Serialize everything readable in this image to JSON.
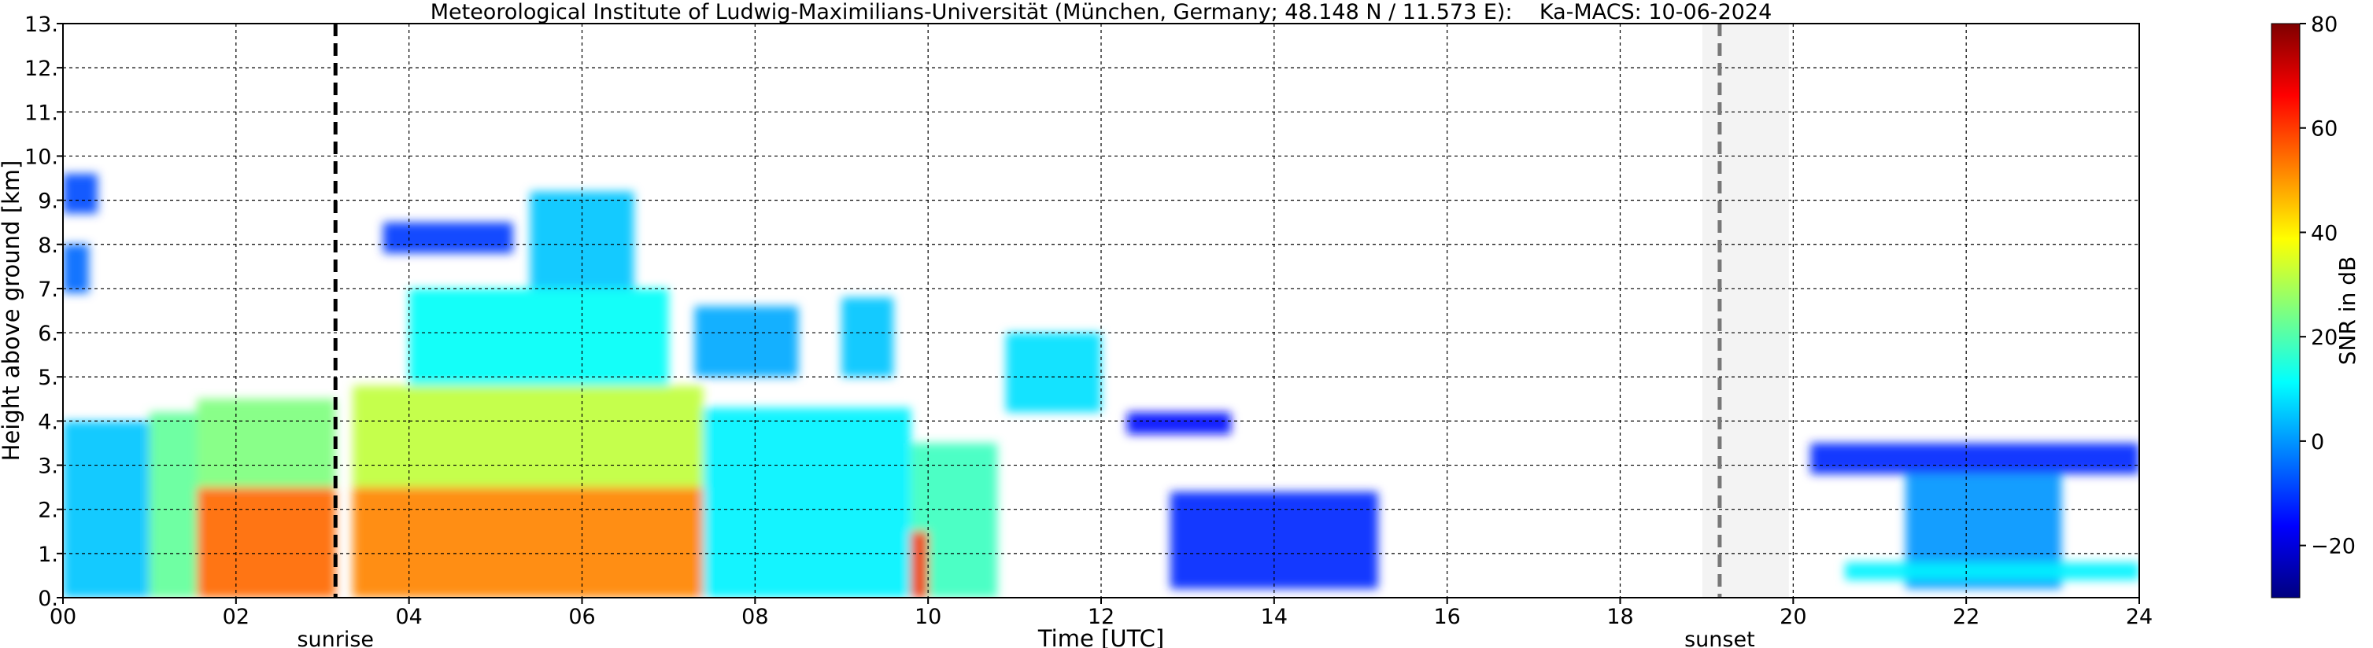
{
  "chart_data": {
    "type": "heatmap",
    "title": "Meteorological Institute of Ludwig-Maximilians-Universität (München, Germany; 48.148 N / 11.573 E):    Ka-MACS: 10-06-2024",
    "xlabel": "Time [UTC]",
    "ylabel": "Height above ground [km]",
    "xlim": [
      0,
      24
    ],
    "ylim": [
      0,
      13
    ],
    "grid": true,
    "x_ticks": [
      0,
      2,
      4,
      6,
      8,
      10,
      12,
      14,
      16,
      18,
      20,
      22,
      24
    ],
    "x_tick_labels": [
      "00",
      "02",
      "04",
      "06",
      "08",
      "10",
      "12",
      "14",
      "16",
      "18",
      "20",
      "22",
      "24"
    ],
    "y_ticks": [
      0,
      1,
      2,
      3,
      4,
      5,
      6,
      7,
      8,
      9,
      10,
      11,
      12,
      13
    ],
    "y_tick_labels": [
      "0.",
      "1.",
      "2.",
      "3.",
      "4.",
      "5.",
      "6.",
      "7.",
      "8.",
      "9.",
      "10.",
      "11.",
      "12.",
      "13."
    ],
    "colorbar": {
      "label": "SNR in dB",
      "range": [
        -30,
        80
      ],
      "ticks": [
        -20,
        0,
        20,
        40,
        60,
        80
      ],
      "tick_labels": [
        "−20",
        "0",
        "20",
        "40",
        "60",
        "80"
      ],
      "colormap": [
        "#00007f",
        "#0000ff",
        "#007fff",
        "#00ffff",
        "#7fff7f",
        "#ffff00",
        "#ff7f00",
        "#ff0000",
        "#7f0000"
      ]
    },
    "events": [
      {
        "label": "sunrise",
        "time": 3.15,
        "line_color": "#000000"
      },
      {
        "label": "sunset",
        "time": 19.15,
        "line_color": "#777777"
      }
    ],
    "no_data_periods": [
      [
        18.95,
        19.95
      ]
    ],
    "echo_regions": [
      {
        "t0": 0.0,
        "t1": 1.0,
        "h0": 0.0,
        "h1": 4.0,
        "snr": 5
      },
      {
        "t0": 1.0,
        "t1": 1.55,
        "h0": 0.0,
        "h1": 4.2,
        "snr": 22
      },
      {
        "t0": 1.55,
        "t1": 3.15,
        "h0": 0.0,
        "h1": 2.5,
        "snr": 55
      },
      {
        "t0": 1.55,
        "t1": 3.15,
        "h0": 2.5,
        "h1": 4.5,
        "snr": 25
      },
      {
        "t0": 3.35,
        "t1": 7.4,
        "h0": 0.0,
        "h1": 2.5,
        "snr": 52
      },
      {
        "t0": 3.35,
        "t1": 7.4,
        "h0": 2.5,
        "h1": 4.8,
        "snr": 32
      },
      {
        "t0": 4.0,
        "t1": 7.0,
        "h0": 4.8,
        "h1": 7.0,
        "snr": 12
      },
      {
        "t0": 5.4,
        "t1": 6.6,
        "h0": 7.0,
        "h1": 9.2,
        "snr": 5
      },
      {
        "t0": 3.7,
        "t1": 5.2,
        "h0": 7.8,
        "h1": 8.5,
        "snr": -10
      },
      {
        "t0": 7.3,
        "t1": 8.5,
        "h0": 5.0,
        "h1": 6.6,
        "snr": 2
      },
      {
        "t0": 7.4,
        "t1": 9.8,
        "h0": 0.0,
        "h1": 4.3,
        "snr": 10
      },
      {
        "t0": 9.8,
        "t1": 10.8,
        "h0": 0.0,
        "h1": 3.5,
        "snr": 18
      },
      {
        "t0": 9.8,
        "t1": 10.0,
        "h0": 0.0,
        "h1": 1.5,
        "snr": 60
      },
      {
        "t0": 9.0,
        "t1": 9.6,
        "h0": 5.0,
        "h1": 6.8,
        "snr": 5
      },
      {
        "t0": 10.9,
        "t1": 12.0,
        "h0": 4.2,
        "h1": 6.0,
        "snr": 8
      },
      {
        "t0": 0.0,
        "t1": 0.4,
        "h0": 8.7,
        "h1": 9.6,
        "snr": -8
      },
      {
        "t0": 0.0,
        "t1": 0.3,
        "h0": 6.9,
        "h1": 8.0,
        "snr": -5
      },
      {
        "t0": 12.3,
        "t1": 13.5,
        "h0": 3.7,
        "h1": 4.2,
        "snr": -15
      },
      {
        "t0": 12.8,
        "t1": 15.2,
        "h0": 0.2,
        "h1": 2.4,
        "snr": -12
      },
      {
        "t0": 20.2,
        "t1": 24.0,
        "h0": 2.8,
        "h1": 3.5,
        "snr": -12
      },
      {
        "t0": 21.3,
        "t1": 23.1,
        "h0": 0.2,
        "h1": 2.8,
        "snr": 0
      },
      {
        "t0": 20.6,
        "t1": 24.0,
        "h0": 0.4,
        "h1": 0.8,
        "snr": 10
      }
    ]
  }
}
